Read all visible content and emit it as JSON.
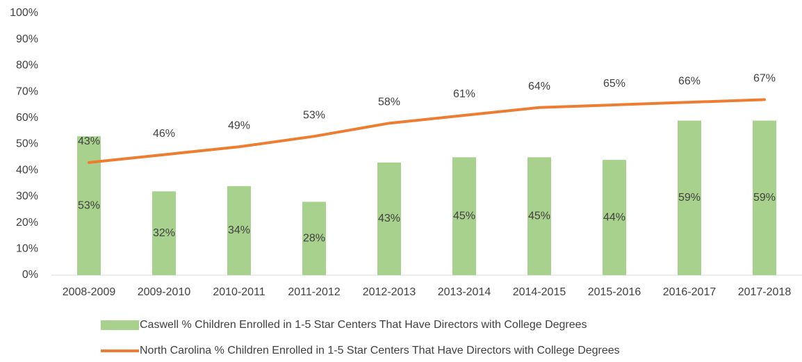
{
  "chart_data": {
    "type": "bar",
    "categories": [
      "2008-2009",
      "2009-2010",
      "2010-2011",
      "2011-2012",
      "2012-2013",
      "2013-2014",
      "2014-2015",
      "2015-2016",
      "2016-2017",
      "2017-2018"
    ],
    "series": [
      {
        "name": "Caswell % Children Enrolled in 1-5 Star Centers That Have Directors with College Degrees",
        "type": "bar",
        "color": "#a9d18e",
        "values": [
          53,
          32,
          34,
          28,
          43,
          45,
          45,
          44,
          59,
          59
        ],
        "value_labels": [
          "53%",
          "32%",
          "34%",
          "28%",
          "43%",
          "45%",
          "45%",
          "44%",
          "59%",
          "59%"
        ]
      },
      {
        "name": "North Carolina % Children Enrolled in 1-5 Star Centers That Have Directors with College Degrees",
        "type": "line",
        "color": "#ed7d31",
        "values": [
          43,
          46,
          49,
          53,
          58,
          61,
          64,
          65,
          66,
          67
        ],
        "value_labels": [
          "43%",
          "46%",
          "49%",
          "53%",
          "58%",
          "61%",
          "64%",
          "65%",
          "66%",
          "67%"
        ]
      }
    ],
    "ylim": [
      0,
      100
    ],
    "yticks": [
      {
        "value": 0,
        "label": "0%"
      },
      {
        "value": 10,
        "label": "10%"
      },
      {
        "value": 20,
        "label": "20%"
      },
      {
        "value": 30,
        "label": "30%"
      },
      {
        "value": 40,
        "label": "40%"
      },
      {
        "value": 50,
        "label": "50%"
      },
      {
        "value": 60,
        "label": "60%"
      },
      {
        "value": 70,
        "label": "70%"
      },
      {
        "value": 80,
        "label": "80%"
      },
      {
        "value": 90,
        "label": "90%"
      },
      {
        "value": 100,
        "label": "100%"
      }
    ],
    "legend": "bottom"
  }
}
